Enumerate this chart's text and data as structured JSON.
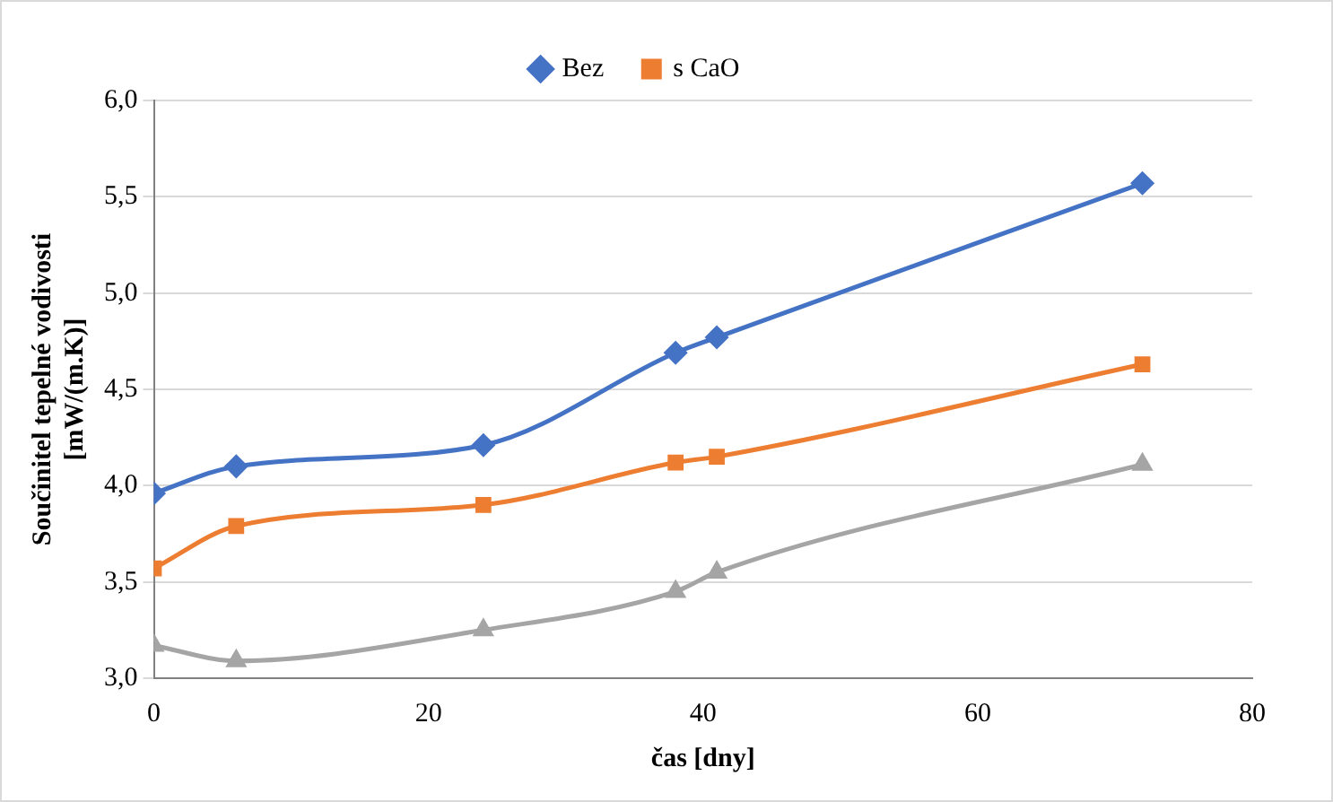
{
  "chart_data": {
    "type": "line",
    "xlabel": "čas [dny]",
    "ylabel": "Součinitel tepelné vodivosti\n[mW/(m.K)]",
    "xlim": [
      0,
      80
    ],
    "xticks": [
      0,
      20,
      40,
      60,
      80
    ],
    "ylim": [
      3,
      6
    ],
    "yticks": [
      {
        "value": 3,
        "label": "3,0"
      },
      {
        "value": 3.5,
        "label": "3,5"
      },
      {
        "value": 4,
        "label": "4,0"
      },
      {
        "value": 4.5,
        "label": "4,5"
      },
      {
        "value": 5,
        "label": "5,0"
      },
      {
        "value": 5.5,
        "label": "5,5"
      },
      {
        "value": 6,
        "label": "6,0"
      }
    ],
    "grid": "y",
    "legend": "top",
    "line_style": "solid",
    "x": [
      0,
      6,
      24,
      38,
      41,
      72
    ],
    "series": [
      {
        "name": "Bez",
        "color": "#4472c4",
        "marker": "diamond",
        "values": [
          3.96,
          4.1,
          4.21,
          4.69,
          4.77,
          5.57
        ]
      },
      {
        "name": "s CaO",
        "color": "#ed7d31",
        "marker": "square",
        "values": [
          3.57,
          3.79,
          3.9,
          4.12,
          4.15,
          4.63
        ]
      },
      {
        "color": "#a5a5a5",
        "marker": "triangle",
        "values": [
          3.17,
          3.09,
          3.25,
          3.45,
          3.55,
          4.11
        ]
      }
    ]
  }
}
